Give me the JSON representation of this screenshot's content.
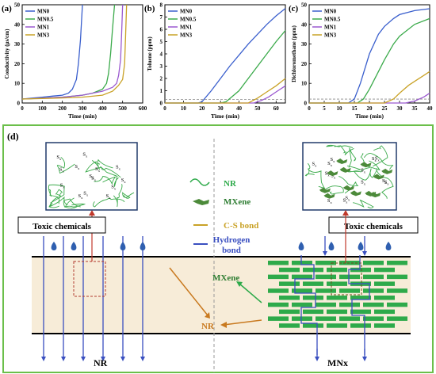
{
  "chart_data": [
    {
      "type": "line",
      "panel_label": "(a)",
      "xlabel": "Time (min)",
      "ylabel": "Conductivity (μs/cm)",
      "xlim": [
        0,
        600
      ],
      "ylim": [
        0,
        50
      ],
      "xticks": [
        "0",
        "100",
        "200",
        "300",
        "400",
        "500",
        "600"
      ],
      "yticks": [
        "0",
        "10",
        "20",
        "30",
        "40",
        "50"
      ],
      "legend_position": "top-left",
      "series": [
        {
          "name": "MN0",
          "color": "#3a5fcd",
          "x": [
            0,
            50,
            100,
            150,
            200,
            230,
            250,
            270,
            280,
            290,
            300
          ],
          "y": [
            2,
            2.5,
            3,
            3.5,
            4,
            5,
            7,
            12,
            20,
            32,
            50
          ]
        },
        {
          "name": "MN0.5",
          "color": "#3aaa4a",
          "x": [
            0,
            100,
            200,
            300,
            350,
            400,
            420,
            430,
            440,
            450,
            460
          ],
          "y": [
            2,
            2.5,
            3,
            4,
            5,
            7,
            10,
            15,
            25,
            38,
            50
          ]
        },
        {
          "name": "MN1",
          "color": "#9b59d0",
          "x": [
            0,
            100,
            200,
            300,
            400,
            450,
            470,
            480,
            490,
            495,
            500
          ],
          "y": [
            2,
            2.5,
            3,
            4,
            6,
            8,
            10,
            14,
            22,
            35,
            50
          ]
        },
        {
          "name": "MN3",
          "color": "#c9a227",
          "x": [
            0,
            100,
            200,
            300,
            400,
            450,
            480,
            500,
            510,
            515,
            520
          ],
          "y": [
            2,
            2.3,
            2.6,
            3,
            4,
            6,
            9,
            12,
            20,
            35,
            50
          ]
        }
      ]
    },
    {
      "type": "line",
      "panel_label": "(b)",
      "xlabel": "Time (min)",
      "ylabel": "Toluene (ppm)",
      "xlim": [
        0,
        65
      ],
      "ylim": [
        0,
        8
      ],
      "xticks": [
        "0",
        "10",
        "20",
        "30",
        "40",
        "50",
        "60"
      ],
      "yticks": [
        "0",
        "1",
        "2",
        "3",
        "4",
        "5",
        "6",
        "7",
        "8"
      ],
      "legend_position": "top-left",
      "threshold": 0.3,
      "series": [
        {
          "name": "MN0",
          "color": "#3a5fcd",
          "x": [
            0,
            18,
            20,
            25,
            30,
            35,
            40,
            45,
            50,
            55,
            60,
            65
          ],
          "y": [
            0,
            0,
            0.1,
            1.0,
            2.0,
            3.0,
            3.9,
            4.8,
            5.6,
            6.4,
            7.1,
            7.7
          ]
        },
        {
          "name": "MN0.5",
          "color": "#3aaa4a",
          "x": [
            0,
            30,
            33,
            40,
            45,
            50,
            55,
            60,
            65
          ],
          "y": [
            0,
            0,
            0.1,
            1.0,
            2.0,
            3.0,
            4.0,
            5.0,
            5.9
          ]
        },
        {
          "name": "MN1",
          "color": "#9b59d0",
          "x": [
            0,
            48,
            52,
            56,
            60,
            65
          ],
          "y": [
            0,
            0,
            0.2,
            0.5,
            0.9,
            1.4
          ]
        },
        {
          "name": "MN3",
          "color": "#c9a227",
          "x": [
            0,
            45,
            50,
            55,
            60,
            65
          ],
          "y": [
            0,
            0,
            0.4,
            0.9,
            1.4,
            2.0
          ]
        }
      ]
    },
    {
      "type": "line",
      "panel_label": "(c)",
      "xlabel": "Time (min)",
      "ylabel": "Dichloromethane (ppm)",
      "xlim": [
        0,
        40
      ],
      "ylim": [
        0,
        50
      ],
      "xticks": [
        "0",
        "5",
        "10",
        "15",
        "20",
        "25",
        "30",
        "35",
        "40"
      ],
      "yticks": [
        "0",
        "10",
        "20",
        "30",
        "40",
        "50"
      ],
      "legend_position": "top-left",
      "threshold": 2,
      "series": [
        {
          "name": "MN0",
          "color": "#3a5fcd",
          "x": [
            0,
            13,
            15,
            17,
            20,
            23,
            25,
            28,
            30,
            35,
            40
          ],
          "y": [
            0,
            0,
            2,
            10,
            25,
            35,
            39,
            43,
            45,
            47,
            48
          ]
        },
        {
          "name": "MN0.5",
          "color": "#3aaa4a",
          "x": [
            0,
            16,
            18,
            20,
            23,
            25,
            28,
            30,
            35,
            40
          ],
          "y": [
            0,
            0,
            2,
            7,
            16,
            22,
            30,
            34,
            40,
            43
          ]
        },
        {
          "name": "MN1",
          "color": "#9b59d0",
          "x": [
            0,
            32,
            35,
            38,
            40
          ],
          "y": [
            0,
            0,
            1,
            3,
            5
          ]
        },
        {
          "name": "MN3",
          "color": "#c9a227",
          "x": [
            0,
            25,
            28,
            30,
            33,
            35,
            38,
            40
          ],
          "y": [
            0,
            0,
            2,
            5,
            9,
            11,
            14,
            16
          ]
        }
      ]
    }
  ],
  "diagram": {
    "panel_label": "(d)",
    "legend": {
      "nr": "NR",
      "mxene": "MXene",
      "cs_bond": "C-S bond",
      "hydrogen_bond_line1": "Hydrogen",
      "hydrogen_bond_line2": "bond"
    },
    "toxic_left": "Toxic chemicals",
    "toxic_right": "Toxic chemicals",
    "label_nr_arrow": "NR",
    "label_mxene_arrow": "MXene",
    "bottom_left": "NR",
    "bottom_right": "MNx",
    "sx": "S",
    "sx_sub": "x",
    "colors": {
      "nr_fill": "#f7ecd8",
      "mxene": "#2eaa4a",
      "arrow": "#3a4fc0",
      "border": "#6bbf4a",
      "cs": "#c9a227"
    }
  }
}
